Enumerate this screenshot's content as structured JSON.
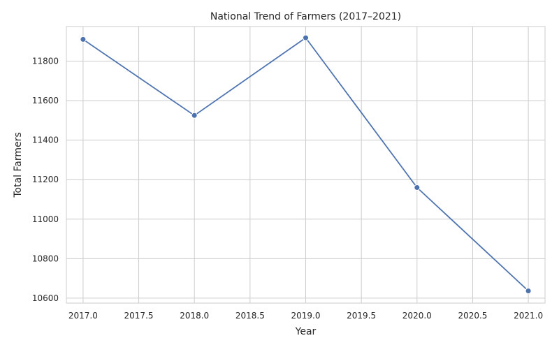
{
  "chart_data": {
    "type": "line",
    "title": "National Trend of Farmers (2017–2021)",
    "xlabel": "Year",
    "ylabel": "Total Farmers",
    "x": [
      2017.0,
      2018.0,
      2019.0,
      2020.0,
      2021.0
    ],
    "series": [
      {
        "values": [
          11910,
          11525,
          11918,
          11160,
          10637
        ]
      }
    ],
    "xlim": [
      2016.85,
      2021.15
    ],
    "ylim": [
      10575,
      11975
    ],
    "xticks": [
      2017.0,
      2017.5,
      2018.0,
      2018.5,
      2019.0,
      2019.5,
      2020.0,
      2020.5,
      2021.0
    ],
    "xtick_labels": [
      "2017.0",
      "2017.5",
      "2018.0",
      "2018.5",
      "2019.0",
      "2019.5",
      "2020.0",
      "2020.5",
      "2021.0"
    ],
    "yticks": [
      10600,
      10800,
      11000,
      11200,
      11400,
      11600,
      11800
    ],
    "ytick_labels": [
      "10600",
      "10800",
      "11000",
      "11200",
      "11400",
      "11600",
      "11800"
    ],
    "grid": true,
    "markers": true,
    "colors": {
      "line": "#4c72b0",
      "grid": "#cccccc",
      "frame": "#cccccc",
      "text": "#262626",
      "background": "#ffffff"
    }
  }
}
